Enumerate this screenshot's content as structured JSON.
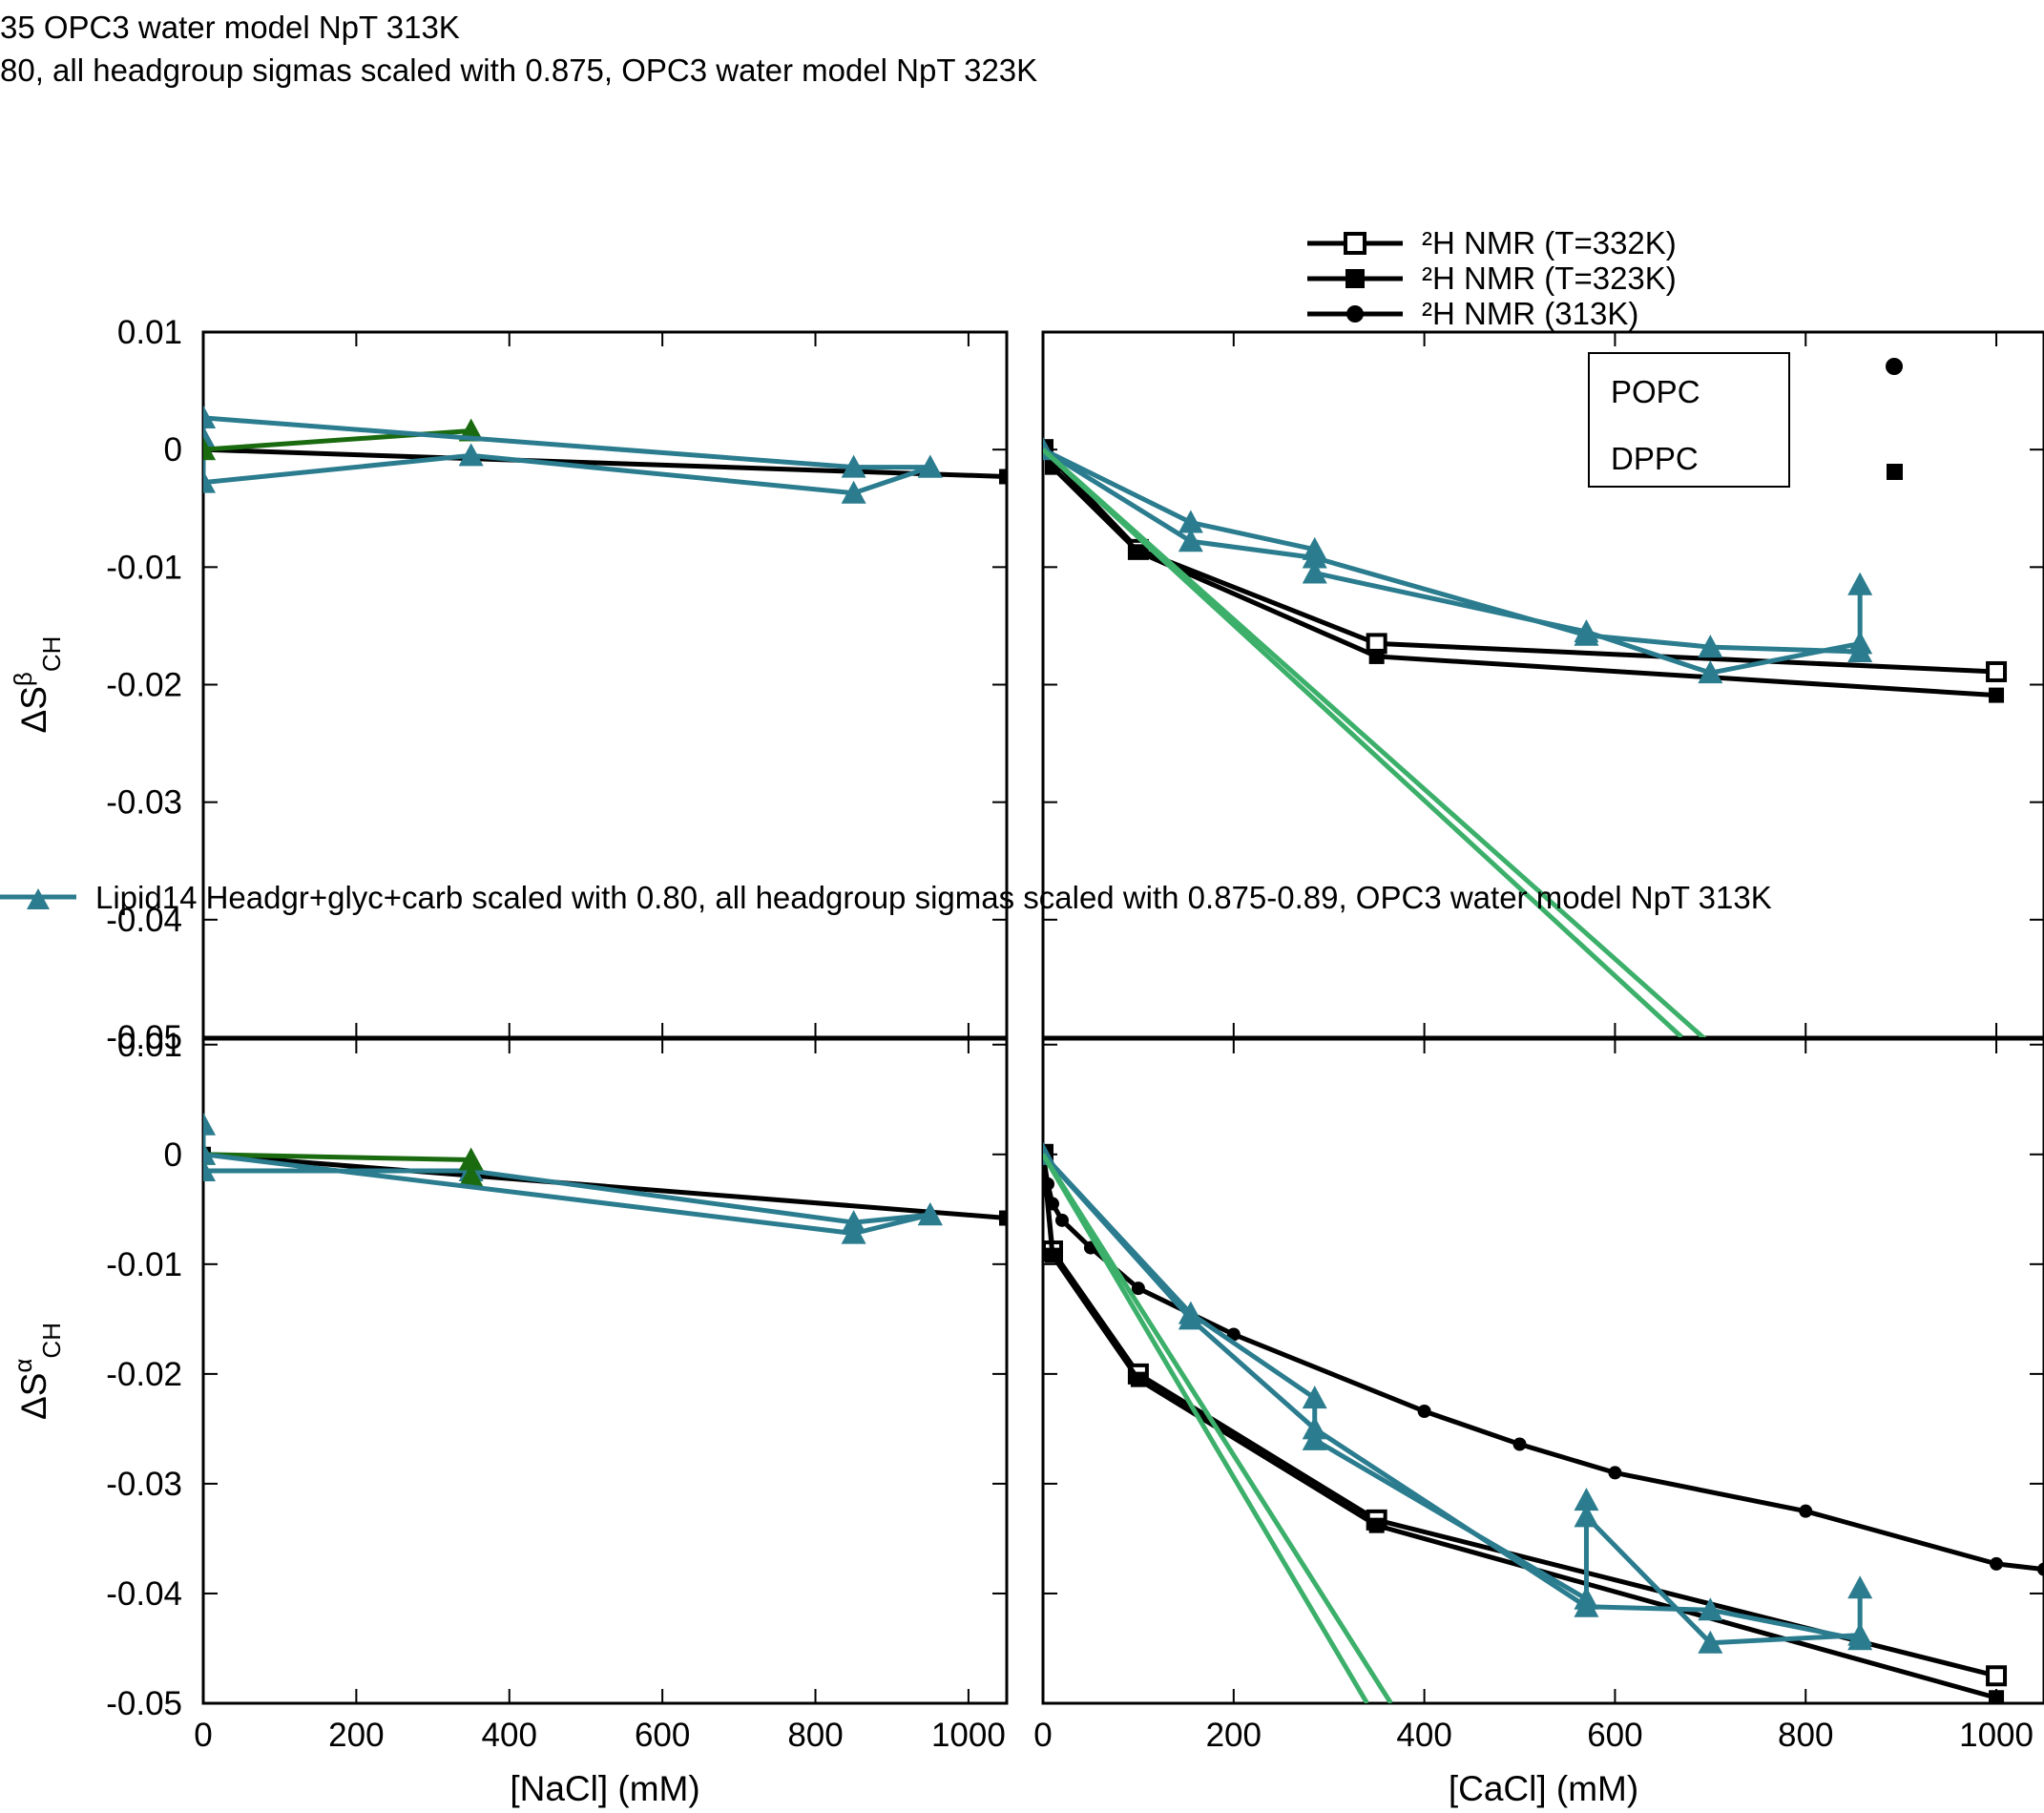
{
  "header_lines": [
    "35 OPC3 water model NpT 313K",
    "80, all headgroup sigmas scaled with 0.875, OPC3 water model NpT 323K"
  ],
  "legend": {
    "items": [
      {
        "label": "²H NMR (T=332K)",
        "style": "open-square"
      },
      {
        "label": "²H NMR (T=323K)",
        "style": "filled-square"
      },
      {
        "label": "²H NMR (313K)",
        "style": "filled-circle"
      }
    ],
    "sim_entry": "Lipid14 Headgr+glyc+carb scaled with 0.80, all headgroup sigmas scaled with 0.875-0.89, OPC3 water model NpT 313K"
  },
  "key_box": {
    "items": [
      "POPC",
      "DPPC"
    ]
  },
  "colors": {
    "black": "#000000",
    "teal": "#2a7c8e",
    "dark_green": "#1a6b10",
    "light_green": "#3cb06a"
  },
  "chart_data": [
    {
      "id": "beta-nacl",
      "type": "line",
      "ylabel": "ΔS^β_CH",
      "xlim": [
        0,
        1050
      ],
      "ylim": [
        -0.05,
        0.01
      ],
      "xticks": [
        0,
        200,
        400,
        600,
        800,
        1000
      ],
      "yticks": [
        "0.01",
        "0",
        "-0.01",
        "-0.02",
        "-0.03",
        "-0.04",
        "-0.05"
      ],
      "series": [
        {
          "color": "black",
          "marker": "square",
          "x": [
            0,
            1050
          ],
          "y": [
            0,
            -0.0023
          ]
        },
        {
          "color": "teal",
          "marker": "triangle",
          "x": [
            0,
            0,
            0,
            0,
            350,
            850,
            950
          ],
          "y": [
            0.0027,
            0.001,
            0.0,
            -0.0028,
            -0.0005,
            -0.0037,
            -0.0015
          ]
        },
        {
          "color": "dark_green",
          "marker": "triangle",
          "x": [
            0,
            350
          ],
          "y": [
            0.0,
            0.0016
          ]
        },
        {
          "color": "teal",
          "marker": "triangle",
          "x": [
            0,
            850,
            950
          ],
          "y": [
            0.0027,
            -0.0015,
            -0.0015
          ]
        }
      ]
    },
    {
      "id": "beta-cacl",
      "type": "line",
      "xlim": [
        0,
        1050
      ],
      "ylim": [
        -0.05,
        0.01
      ],
      "xticks": [
        0,
        200,
        400,
        600,
        800,
        1000
      ],
      "series": [
        {
          "color": "black",
          "marker": "open-square",
          "x": [
            0,
            100,
            350,
            1000
          ],
          "y": [
            0.0,
            -0.0085,
            -0.0165,
            -0.0189
          ]
        },
        {
          "color": "black",
          "marker": "square",
          "x": [
            0,
            10,
            100,
            350,
            1000
          ],
          "y": [
            0.0,
            -0.0015,
            -0.0087,
            -0.0176,
            -0.0209
          ]
        },
        {
          "color": "teal",
          "marker": "triangle",
          "x": [
            0,
            155,
            285,
            285,
            570,
            700,
            857,
            857
          ],
          "y": [
            0.0,
            -0.0062,
            -0.0085,
            -0.0105,
            -0.0155,
            -0.019,
            -0.0165,
            -0.0115
          ]
        },
        {
          "color": "teal",
          "marker": "triangle",
          "x": [
            0,
            155,
            285,
            570,
            700,
            857
          ],
          "y": [
            0.0,
            -0.0078,
            -0.0092,
            -0.0158,
            -0.0168,
            -0.0172
          ]
        },
        {
          "color": "light_green",
          "x": [
            0,
            670
          ],
          "y": [
            0.0,
            -0.05
          ]
        },
        {
          "color": "light_green",
          "x": [
            0,
            695
          ],
          "y": [
            0.0,
            -0.0502
          ]
        }
      ]
    },
    {
      "id": "alpha-nacl",
      "type": "line",
      "ylabel": "ΔS^α_CH",
      "xlabel": "[NaCl] (mM)",
      "xlim": [
        0,
        1050
      ],
      "ylim": [
        -0.05,
        0.0105
      ],
      "xticks": [
        0,
        200,
        400,
        600,
        800,
        1000
      ],
      "yticks": [
        "0.01",
        "0",
        "-0.01",
        "-0.02",
        "-0.03",
        "-0.04",
        "-0.05"
      ],
      "series": [
        {
          "color": "black",
          "marker": "square",
          "x": [
            0,
            1050
          ],
          "y": [
            0,
            -0.0058
          ]
        },
        {
          "color": "teal",
          "marker": "triangle",
          "x": [
            0,
            0,
            350,
            850,
            950
          ],
          "y": [
            0.0027,
            -0.0015,
            -0.0015,
            -0.0062,
            -0.0055
          ]
        },
        {
          "color": "dark_green",
          "marker": "triangle",
          "x": [
            0,
            350,
            350
          ],
          "y": [
            0.0,
            -0.0005,
            -0.002
          ]
        },
        {
          "color": "teal",
          "marker": "triangle",
          "x": [
            0,
            850,
            950
          ],
          "y": [
            0.0,
            -0.0072,
            -0.0055
          ]
        }
      ]
    },
    {
      "id": "alpha-cacl",
      "type": "line",
      "xlabel": "[CaCl] (mM)",
      "xlim": [
        0,
        1050
      ],
      "ylim": [
        -0.05,
        0.0105
      ],
      "xticks": [
        0,
        200,
        400,
        600,
        800,
        1000
      ],
      "series": [
        {
          "color": "black",
          "marker": "circle",
          "x": [
            0,
            5,
            10,
            20,
            50,
            100,
            200,
            400,
            500,
            600,
            800,
            1000,
            1050
          ],
          "y": [
            0.0,
            -0.0027,
            -0.0045,
            -0.006,
            -0.0085,
            -0.0122,
            -0.0164,
            -0.0234,
            -0.0264,
            -0.029,
            -0.0325,
            -0.0373,
            -0.0378
          ]
        },
        {
          "color": "black",
          "marker": "open-square",
          "x": [
            0,
            10,
            100,
            350,
            1000
          ],
          "y": [
            0.0,
            -0.0088,
            -0.02,
            -0.0333,
            -0.0475
          ]
        },
        {
          "color": "black",
          "marker": "square",
          "x": [
            0,
            10,
            100,
            350,
            1000
          ],
          "y": [
            0.0,
            -0.0092,
            -0.0205,
            -0.0338,
            -0.0495
          ]
        },
        {
          "color": "teal",
          "marker": "triangle",
          "x": [
            0,
            155,
            285,
            285,
            570,
            570,
            570,
            700,
            857,
            857
          ],
          "y": [
            0.0,
            -0.0145,
            -0.0222,
            -0.026,
            -0.0405,
            -0.0315,
            -0.033,
            -0.0445,
            -0.0438,
            -0.0395
          ]
        },
        {
          "color": "teal",
          "marker": "triangle",
          "x": [
            0,
            155,
            285,
            570,
            700,
            857
          ],
          "y": [
            0.0,
            -0.015,
            -0.025,
            -0.0412,
            -0.0415,
            -0.0442
          ]
        },
        {
          "color": "light_green",
          "x": [
            0,
            340
          ],
          "y": [
            0.0,
            -0.05
          ]
        },
        {
          "color": "light_green",
          "x": [
            0,
            365
          ],
          "y": [
            0.0,
            -0.05
          ]
        }
      ]
    }
  ]
}
